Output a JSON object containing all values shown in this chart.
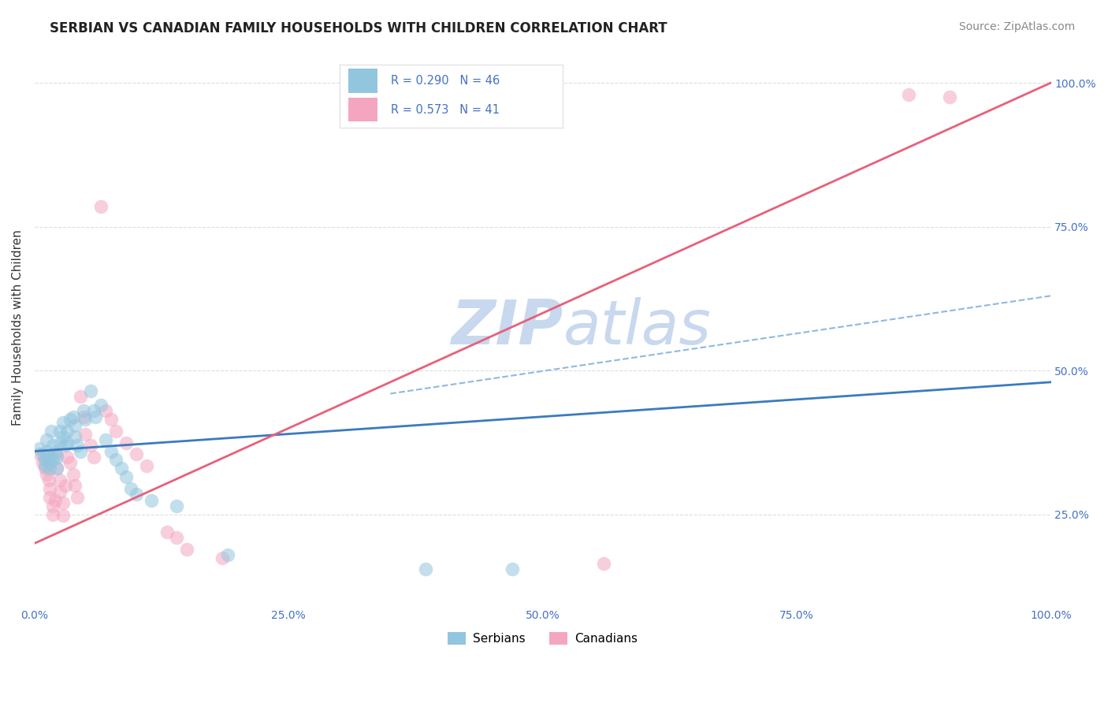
{
  "title": "SERBIAN VS CANADIAN FAMILY HOUSEHOLDS WITH CHILDREN CORRELATION CHART",
  "source": "Source: ZipAtlas.com",
  "ylabel": "Family Households with Children",
  "xlabel": "",
  "serbian_R": 0.29,
  "serbian_N": 46,
  "canadian_R": 0.573,
  "canadian_N": 41,
  "serbian_color": "#92c5de",
  "canadian_color": "#f4a6c0",
  "serbian_line_color": "#3a7bbf",
  "canadian_line_color": "#e8607a",
  "dash_line_color": "#90b8e0",
  "background_color": "#ffffff",
  "watermark_color": "#c8d8ee",
  "xlim": [
    0.0,
    1.0
  ],
  "ylim": [
    0.1,
    1.05
  ],
  "xtick_positions": [
    0.0,
    0.25,
    0.5,
    0.75,
    1.0
  ],
  "xtick_labels": [
    "0.0%",
    "25.0%",
    "50.0%",
    "75.0%",
    "100.0%"
  ],
  "ytick_positions": [
    0.25,
    0.5,
    0.75,
    1.0
  ],
  "ytick_labels": [
    "25.0%",
    "50.0%",
    "75.0%",
    "100.0%"
  ],
  "legend_labels": [
    "Serbians",
    "Canadians"
  ],
  "serbian_line_x": [
    0.0,
    1.0
  ],
  "serbian_line_y": [
    0.36,
    0.48
  ],
  "canadian_line_x": [
    0.0,
    1.0
  ],
  "canadian_line_y": [
    0.2,
    1.0
  ],
  "dash_line_x": [
    0.35,
    1.0
  ],
  "dash_line_y": [
    0.46,
    0.63
  ],
  "serbian_points": [
    [
      0.005,
      0.365
    ],
    [
      0.008,
      0.355
    ],
    [
      0.01,
      0.345
    ],
    [
      0.01,
      0.335
    ],
    [
      0.012,
      0.38
    ],
    [
      0.012,
      0.36
    ],
    [
      0.014,
      0.35
    ],
    [
      0.015,
      0.34
    ],
    [
      0.015,
      0.33
    ],
    [
      0.016,
      0.395
    ],
    [
      0.018,
      0.37
    ],
    [
      0.018,
      0.345
    ],
    [
      0.02,
      0.36
    ],
    [
      0.022,
      0.35
    ],
    [
      0.022,
      0.33
    ],
    [
      0.025,
      0.395
    ],
    [
      0.025,
      0.375
    ],
    [
      0.028,
      0.41
    ],
    [
      0.028,
      0.385
    ],
    [
      0.03,
      0.37
    ],
    [
      0.032,
      0.395
    ],
    [
      0.032,
      0.375
    ],
    [
      0.035,
      0.415
    ],
    [
      0.038,
      0.42
    ],
    [
      0.04,
      0.405
    ],
    [
      0.04,
      0.385
    ],
    [
      0.042,
      0.37
    ],
    [
      0.045,
      0.36
    ],
    [
      0.048,
      0.43
    ],
    [
      0.05,
      0.415
    ],
    [
      0.055,
      0.465
    ],
    [
      0.058,
      0.43
    ],
    [
      0.06,
      0.42
    ],
    [
      0.065,
      0.44
    ],
    [
      0.07,
      0.38
    ],
    [
      0.075,
      0.36
    ],
    [
      0.08,
      0.345
    ],
    [
      0.085,
      0.33
    ],
    [
      0.09,
      0.315
    ],
    [
      0.095,
      0.295
    ],
    [
      0.1,
      0.285
    ],
    [
      0.115,
      0.275
    ],
    [
      0.14,
      0.265
    ],
    [
      0.19,
      0.18
    ],
    [
      0.385,
      0.155
    ],
    [
      0.47,
      0.155
    ]
  ],
  "canadian_points": [
    [
      0.005,
      0.355
    ],
    [
      0.008,
      0.34
    ],
    [
      0.01,
      0.33
    ],
    [
      0.012,
      0.32
    ],
    [
      0.014,
      0.31
    ],
    [
      0.015,
      0.295
    ],
    [
      0.015,
      0.28
    ],
    [
      0.018,
      0.265
    ],
    [
      0.018,
      0.25
    ],
    [
      0.02,
      0.275
    ],
    [
      0.022,
      0.355
    ],
    [
      0.022,
      0.33
    ],
    [
      0.025,
      0.31
    ],
    [
      0.025,
      0.29
    ],
    [
      0.028,
      0.27
    ],
    [
      0.028,
      0.248
    ],
    [
      0.03,
      0.3
    ],
    [
      0.032,
      0.35
    ],
    [
      0.035,
      0.34
    ],
    [
      0.038,
      0.32
    ],
    [
      0.04,
      0.3
    ],
    [
      0.042,
      0.28
    ],
    [
      0.045,
      0.455
    ],
    [
      0.048,
      0.42
    ],
    [
      0.05,
      0.39
    ],
    [
      0.055,
      0.37
    ],
    [
      0.058,
      0.35
    ],
    [
      0.065,
      0.785
    ],
    [
      0.07,
      0.43
    ],
    [
      0.075,
      0.415
    ],
    [
      0.08,
      0.395
    ],
    [
      0.09,
      0.375
    ],
    [
      0.1,
      0.355
    ],
    [
      0.11,
      0.335
    ],
    [
      0.13,
      0.22
    ],
    [
      0.14,
      0.21
    ],
    [
      0.15,
      0.19
    ],
    [
      0.185,
      0.175
    ],
    [
      0.56,
      0.165
    ],
    [
      0.86,
      0.98
    ],
    [
      0.9,
      0.975
    ]
  ],
  "title_fontsize": 12,
  "source_fontsize": 10,
  "ylabel_fontsize": 11,
  "tick_fontsize": 10,
  "legend_fontsize": 11,
  "dot_size": 160,
  "dot_alpha": 0.55
}
